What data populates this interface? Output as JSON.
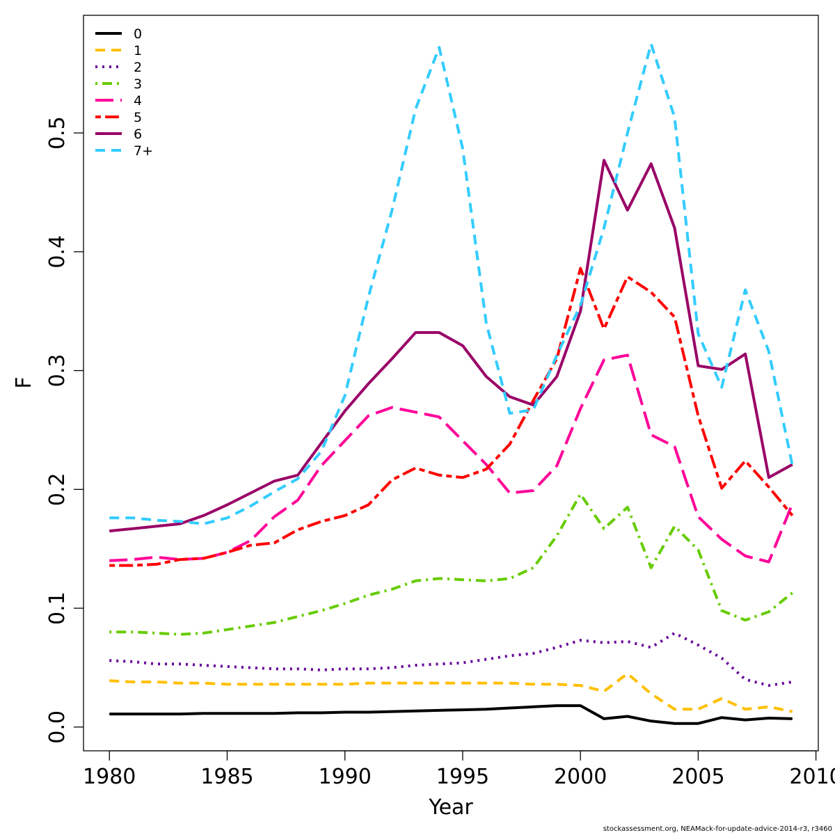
{
  "chart_data": {
    "type": "line",
    "title": "",
    "xlabel": "Year",
    "ylabel": "F",
    "xlim": [
      1978.9,
      2010.1
    ],
    "ylim": [
      -0.02,
      0.599
    ],
    "xticks": [
      1980,
      1985,
      1990,
      1995,
      2000,
      2005,
      2010
    ],
    "xtick_labels": [
      "1980",
      "1985",
      "1990",
      "1995",
      "2000",
      "2005",
      "2010"
    ],
    "yticks": [
      0.0,
      0.1,
      0.2,
      0.3,
      0.4,
      0.5
    ],
    "ytick_labels": [
      "0.0",
      "0.1",
      "0.2",
      "0.3",
      "0.4",
      "0.5"
    ],
    "grid": false,
    "legend_position": "top-left",
    "x": [
      1980,
      1981,
      1982,
      1983,
      1984,
      1985,
      1986,
      1987,
      1988,
      1989,
      1990,
      1991,
      1992,
      1993,
      1994,
      1995,
      1996,
      1997,
      1998,
      1999,
      2000,
      2001,
      2002,
      2003,
      2004,
      2005,
      2006,
      2007,
      2008,
      2009
    ],
    "series": [
      {
        "name": "0",
        "color": "#000000",
        "dash": "solid",
        "values": [
          0.011,
          0.011,
          0.011,
          0.011,
          0.0115,
          0.0115,
          0.0115,
          0.0115,
          0.012,
          0.012,
          0.0125,
          0.0125,
          0.013,
          0.0135,
          0.014,
          0.0145,
          0.015,
          0.016,
          0.017,
          0.018,
          0.018,
          0.007,
          0.009,
          0.005,
          0.003,
          0.003,
          0.008,
          0.006,
          0.0075,
          0.007
        ]
      },
      {
        "name": "1",
        "color": "#FFC000",
        "dash": "dashed",
        "values": [
          0.039,
          0.038,
          0.038,
          0.037,
          0.037,
          0.036,
          0.036,
          0.036,
          0.036,
          0.036,
          0.036,
          0.037,
          0.037,
          0.037,
          0.037,
          0.037,
          0.037,
          0.037,
          0.036,
          0.036,
          0.035,
          0.03,
          0.045,
          0.028,
          0.015,
          0.015,
          0.024,
          0.015,
          0.017,
          0.013
        ]
      },
      {
        "name": "2",
        "color": "#660099",
        "dash": "dotted",
        "values": [
          0.056,
          0.055,
          0.053,
          0.053,
          0.052,
          0.051,
          0.05,
          0.049,
          0.049,
          0.048,
          0.049,
          0.049,
          0.05,
          0.052,
          0.053,
          0.054,
          0.057,
          0.06,
          0.062,
          0.067,
          0.073,
          0.071,
          0.072,
          0.067,
          0.079,
          0.069,
          0.058,
          0.04,
          0.035,
          0.038
        ]
      },
      {
        "name": "3",
        "color": "#66CC00",
        "dash": "dotdash",
        "values": [
          0.08,
          0.08,
          0.079,
          0.078,
          0.079,
          0.082,
          0.085,
          0.088,
          0.093,
          0.098,
          0.104,
          0.111,
          0.116,
          0.123,
          0.125,
          0.124,
          0.123,
          0.125,
          0.134,
          0.161,
          0.196,
          0.167,
          0.185,
          0.134,
          0.169,
          0.149,
          0.098,
          0.09,
          0.097,
          0.113
        ]
      },
      {
        "name": "4",
        "color": "#FF0099",
        "dash": "longdash",
        "values": [
          0.14,
          0.141,
          0.143,
          0.141,
          0.142,
          0.147,
          0.157,
          0.177,
          0.191,
          0.22,
          0.241,
          0.262,
          0.269,
          0.265,
          0.261,
          0.241,
          0.221,
          0.197,
          0.199,
          0.22,
          0.268,
          0.309,
          0.313,
          0.246,
          0.236,
          0.177,
          0.158,
          0.144,
          0.139,
          0.188
        ]
      },
      {
        "name": "5",
        "color": "#FF0000",
        "dash": "twodash",
        "values": [
          0.136,
          0.136,
          0.137,
          0.141,
          0.142,
          0.147,
          0.153,
          0.155,
          0.166,
          0.173,
          0.178,
          0.187,
          0.208,
          0.218,
          0.212,
          0.21,
          0.217,
          0.238,
          0.275,
          0.31,
          0.386,
          0.335,
          0.379,
          0.366,
          0.345,
          0.262,
          0.201,
          0.224,
          0.202,
          0.178
        ]
      },
      {
        "name": "6",
        "color": "#990066",
        "dash": "solid",
        "values": [
          0.165,
          0.167,
          0.169,
          0.171,
          0.178,
          0.187,
          0.197,
          0.207,
          0.212,
          0.239,
          0.266,
          0.289,
          0.31,
          0.332,
          0.332,
          0.321,
          0.295,
          0.278,
          0.271,
          0.295,
          0.35,
          0.477,
          0.435,
          0.474,
          0.42,
          0.304,
          0.301,
          0.314,
          0.21,
          0.221
        ]
      },
      {
        "name": "7+",
        "color": "#33CCFF",
        "dash": "dashed",
        "values": [
          0.176,
          0.176,
          0.174,
          0.173,
          0.171,
          0.176,
          0.186,
          0.198,
          0.209,
          0.232,
          0.279,
          0.362,
          0.435,
          0.52,
          0.572,
          0.487,
          0.34,
          0.264,
          0.267,
          0.313,
          0.355,
          0.42,
          0.5,
          0.575,
          0.513,
          0.331,
          0.286,
          0.368,
          0.316,
          0.22
        ]
      }
    ]
  },
  "footer_note": "stockassessment.org, NEAMack-for-update-advice-2014-r3, r3460"
}
